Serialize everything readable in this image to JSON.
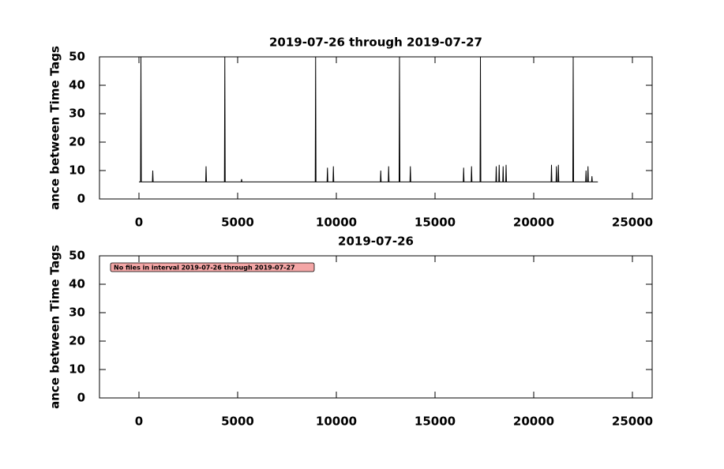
{
  "chart_data": [
    {
      "type": "line",
      "title": "2019-07-26 through 2019-07-27",
      "y_label": "ance between Time Tags",
      "x": [
        0,
        80,
        100,
        120,
        680,
        700,
        720,
        3380,
        3400,
        3420,
        4330,
        4350,
        4370,
        5180,
        5200,
        5220,
        8930,
        8950,
        8970,
        9530,
        9550,
        9570,
        9830,
        9850,
        9870,
        12230,
        12250,
        12270,
        12630,
        12650,
        12670,
        13180,
        13200,
        13220,
        13730,
        13750,
        13770,
        16430,
        16450,
        16470,
        16830,
        16850,
        16870,
        17280,
        17300,
        17320,
        18080,
        18100,
        18120,
        18230,
        18250,
        18270,
        18430,
        18450,
        18470,
        18580,
        18600,
        18620,
        20880,
        20900,
        20920,
        21130,
        21150,
        21170,
        21230,
        21250,
        21270,
        21980,
        22000,
        22020,
        22630,
        22650,
        22670,
        22730,
        22750,
        22770,
        22930,
        22950,
        22970,
        23250
      ],
      "series": [
        {
          "color": "#000000",
          "values": [
            6,
            6,
            50,
            6,
            6,
            10,
            6,
            6,
            11.5,
            6,
            6,
            50,
            6,
            6,
            7,
            6,
            6,
            50,
            6,
            6,
            11,
            6,
            6,
            11.5,
            6,
            6,
            10,
            6,
            6,
            11.5,
            6,
            6,
            50,
            6,
            6,
            11.5,
            6,
            6,
            11,
            6,
            6,
            11.5,
            6,
            6,
            50,
            6,
            6,
            11.5,
            6,
            6,
            12,
            6,
            6,
            11.5,
            6,
            6,
            12,
            6,
            6,
            12,
            6,
            6,
            11.5,
            6,
            6,
            12,
            6,
            6,
            50,
            6,
            6,
            10,
            6,
            6,
            11.5,
            6,
            6,
            8,
            6,
            6
          ]
        }
      ],
      "xlim": [
        -2000,
        26000
      ],
      "ylim": [
        0,
        50
      ],
      "xticks": [
        0,
        5000,
        10000,
        15000,
        20000,
        25000
      ],
      "yticks": [
        0,
        10,
        20,
        30,
        40,
        50
      ]
    },
    {
      "type": "line",
      "title": "2019-07-26",
      "y_label": "ance between Time Tags",
      "annotation": "No files in interval 2019-07-26 through 2019-07-27",
      "x": [],
      "series": [],
      "xlim": [
        -2000,
        26000
      ],
      "ylim": [
        0,
        50
      ],
      "xticks": [
        0,
        5000,
        10000,
        15000,
        20000,
        25000
      ],
      "yticks": [
        0,
        10,
        20,
        30,
        40,
        50
      ]
    }
  ]
}
